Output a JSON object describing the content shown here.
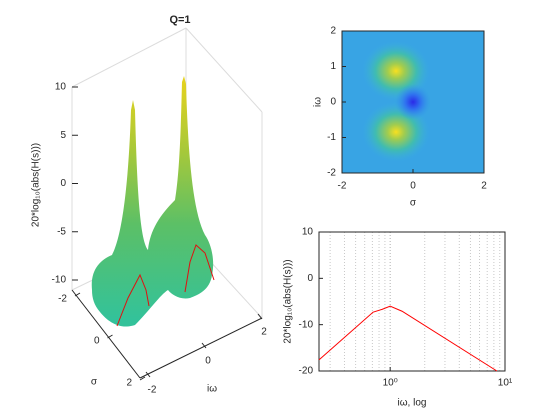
{
  "chart_data": [
    {
      "type": "surface",
      "title": "Q=1",
      "xlabel": "σ",
      "ylabel": "iω",
      "zlabel": "20*log₁₀(abs(H(s)))",
      "xlim": [
        -2,
        2
      ],
      "xticks": [
        -2,
        0,
        2
      ],
      "ylim": [
        -2,
        2
      ],
      "yticks": [
        -2,
        0,
        2
      ],
      "zlim": [
        -10,
        10
      ],
      "zticks": [
        -10,
        -5,
        0,
        5,
        10
      ]
    },
    {
      "type": "heatmap",
      "xlabel": "σ",
      "ylabel": "iω",
      "xlim": [
        -2,
        2
      ],
      "xticks": [
        -2,
        0,
        2
      ],
      "ylim": [
        -2,
        2
      ],
      "yticks": [
        -2,
        -1,
        0,
        1,
        2
      ]
    },
    {
      "type": "line",
      "xlabel": "iω, log",
      "ylabel": "20*log₁₀(abs(H(s)))",
      "xlog": true,
      "grid": true,
      "x": [
        0.24,
        0.71,
        0.85,
        1,
        1.27,
        8.5
      ],
      "values": [
        -17.6,
        -7.3,
        -6.7,
        -6,
        -7.1,
        -20
      ],
      "color": "#ff0000",
      "xlim": [
        0.24,
        10
      ],
      "xticks": [
        {
          "value": 1,
          "label": "10⁰"
        },
        {
          "value": 10,
          "label": "10¹"
        }
      ],
      "ylim": [
        -20,
        10
      ],
      "yticks": [
        -20,
        -10,
        0,
        10
      ]
    }
  ]
}
